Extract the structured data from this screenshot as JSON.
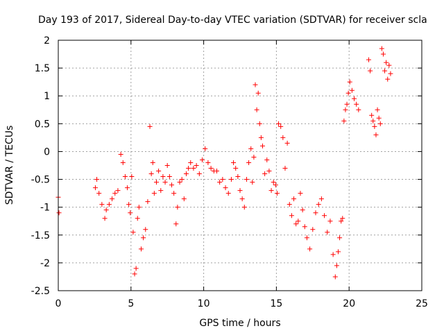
{
  "chart_data": {
    "type": "scatter",
    "title": "Day 193 of 2017, Sidereal Day-to-day VTEC variation (SDTVAR) for receiver scla",
    "xlabel": "GPS time / hours",
    "ylabel": "SDTVAR / TECUs",
    "xlim": [
      0,
      25
    ],
    "ylim": [
      -2.5,
      2
    ],
    "xticks": [
      0,
      5,
      10,
      15,
      20,
      25
    ],
    "xtick_labels": [
      "0",
      "5",
      "10",
      "15",
      "20",
      "25"
    ],
    "yticks": [
      -2.5,
      -2,
      -1.5,
      -1,
      -0.5,
      0,
      0.5,
      1,
      1.5,
      2
    ],
    "ytick_labels": [
      "-2.5",
      "-2",
      "-1.5",
      "-1",
      "-0.5",
      "0",
      "0.5",
      "1",
      "1.5",
      "2"
    ],
    "grid": true,
    "marker": "+",
    "marker_color": "#ff0000",
    "series": [
      {
        "name": "SDTVAR",
        "x": [
          0.0,
          0.05,
          2.55,
          2.65,
          2.8,
          3.0,
          3.2,
          3.3,
          3.5,
          3.7,
          3.9,
          4.1,
          4.3,
          4.45,
          4.6,
          4.75,
          4.85,
          4.95,
          5.05,
          5.15,
          5.25,
          5.35,
          5.45,
          5.55,
          5.7,
          5.85,
          6.0,
          6.15,
          6.3,
          6.4,
          6.5,
          6.6,
          6.75,
          6.9,
          7.05,
          7.2,
          7.35,
          7.5,
          7.65,
          7.8,
          7.95,
          8.1,
          8.2,
          8.35,
          8.5,
          8.65,
          8.8,
          8.95,
          9.1,
          9.3,
          9.5,
          9.7,
          9.9,
          10.1,
          10.3,
          10.5,
          10.7,
          10.9,
          11.1,
          11.3,
          11.5,
          11.7,
          11.9,
          12.05,
          12.2,
          12.35,
          12.5,
          12.65,
          12.8,
          12.95,
          13.1,
          13.25,
          13.35,
          13.45,
          13.55,
          13.65,
          13.75,
          13.85,
          13.95,
          14.05,
          14.2,
          14.35,
          14.5,
          14.65,
          14.8,
          14.95,
          15.05,
          15.15,
          15.3,
          15.45,
          15.6,
          15.75,
          15.9,
          16.05,
          16.2,
          16.35,
          16.5,
          16.65,
          16.8,
          16.95,
          17.1,
          17.3,
          17.5,
          17.7,
          17.9,
          18.1,
          18.3,
          18.5,
          18.7,
          18.9,
          19.05,
          19.15,
          19.25,
          19.35,
          19.45,
          19.55,
          19.65,
          19.75,
          19.85,
          19.95,
          20.05,
          20.2,
          20.35,
          20.5,
          20.65,
          21.35,
          21.45,
          21.55,
          21.65,
          21.75,
          21.85,
          21.95,
          22.05,
          22.15,
          22.25,
          22.35,
          22.45,
          22.55,
          22.65,
          22.75,
          22.85
        ],
        "y": [
          -0.82,
          -1.1,
          -0.65,
          -0.5,
          -0.75,
          -0.95,
          -1.2,
          -1.05,
          -0.95,
          -0.85,
          -0.75,
          -0.7,
          -0.05,
          -0.2,
          -0.45,
          -0.65,
          -0.95,
          -1.1,
          -0.45,
          -1.45,
          -2.2,
          -2.1,
          -1.2,
          -1.0,
          -1.75,
          -1.55,
          -1.4,
          -0.9,
          0.45,
          -0.4,
          -0.2,
          -0.75,
          -0.55,
          -0.35,
          -0.7,
          -0.45,
          -0.55,
          -0.25,
          -0.45,
          -0.6,
          -0.75,
          -1.3,
          -1.0,
          -0.55,
          -0.5,
          -0.85,
          -0.4,
          -0.3,
          -0.2,
          -0.3,
          -0.25,
          -0.4,
          -0.15,
          0.05,
          -0.2,
          -0.3,
          -0.35,
          -0.35,
          -0.55,
          -0.5,
          -0.65,
          -0.75,
          -0.5,
          -0.2,
          -0.3,
          -0.45,
          -0.7,
          -0.85,
          -1.0,
          -0.5,
          -0.2,
          0.05,
          -0.55,
          -0.1,
          1.2,
          0.75,
          1.05,
          0.5,
          0.25,
          0.1,
          -0.4,
          -0.15,
          -0.35,
          -0.7,
          -0.55,
          -0.6,
          -0.75,
          0.5,
          0.45,
          0.25,
          -0.3,
          0.15,
          -0.95,
          -1.15,
          -0.85,
          -1.3,
          -1.25,
          -0.75,
          -1.05,
          -1.35,
          -1.55,
          -1.75,
          -1.4,
          -1.1,
          -0.95,
          -0.85,
          -1.15,
          -1.45,
          -1.25,
          -1.85,
          -2.25,
          -2.05,
          -1.8,
          -1.55,
          -1.25,
          -1.2,
          0.55,
          0.75,
          0.85,
          1.05,
          1.25,
          1.1,
          0.95,
          0.85,
          0.75,
          1.65,
          1.45,
          0.65,
          0.55,
          0.45,
          0.3,
          0.75,
          0.6,
          0.5,
          1.85,
          1.75,
          1.45,
          1.6,
          1.3,
          1.55,
          1.4
        ]
      }
    ]
  }
}
